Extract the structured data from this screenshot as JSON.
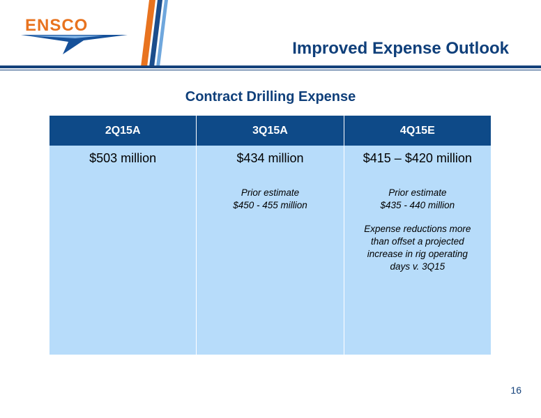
{
  "brand": {
    "name": "ENSCO",
    "accent": "#e8731f",
    "primary": "#15427b"
  },
  "slide": {
    "title": "Improved Expense Outlook",
    "subtitle": "Contract Drilling Expense",
    "page_number": "16"
  },
  "table": {
    "headers": [
      "2Q15A",
      "3Q15A",
      "4Q15E"
    ],
    "columns": [
      {
        "amount": "$503 million"
      },
      {
        "amount": "$434 million",
        "note_line1": "Prior estimate",
        "note_line2": "$450 - 455 million"
      },
      {
        "amount": "$415 – $420 million",
        "note_line1": "Prior estimate",
        "note_line2": "$435 - 440 million",
        "detail": [
          "Expense reductions more",
          "than offset a projected",
          "increase in rig operating",
          "days v. 3Q15"
        ]
      }
    ]
  },
  "colors": {
    "header_bg": "#0e4a88",
    "cell_bg": "#b7dcfa",
    "title": "#0f3f7a"
  }
}
